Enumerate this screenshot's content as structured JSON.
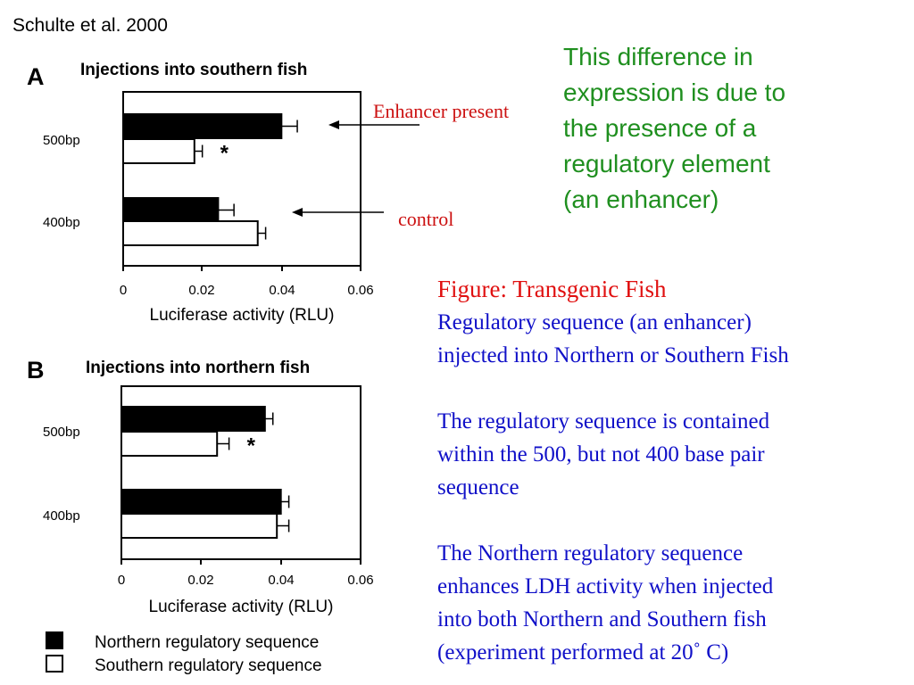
{
  "citation": "Schulte et al. 2000",
  "annotations": {
    "enhancer_label": "Enhancer present",
    "control_label": "control",
    "label_color": "#cc1111"
  },
  "green_note": [
    "This difference in",
    "expression is due to",
    "the presence of a",
    "regulatory element",
    "(an enhancer)"
  ],
  "figure_text": {
    "title": "Figure: Transgenic Fish",
    "para1": [
      "Regulatory sequence (an enhancer)",
      "injected into Northern or Southern Fish"
    ],
    "para2": [
      "The regulatory sequence is contained",
      "within the 500, but not 400 base pair",
      "sequence"
    ],
    "para3": [
      "The Northern regulatory sequence",
      "enhances LDH activity when injected",
      "into both Northern and Southern fish",
      "(experiment performed at 20˚ C)"
    ]
  },
  "legend": {
    "northern": "Northern regulatory sequence",
    "southern": "Southern regulatory sequence"
  },
  "chart_data": [
    {
      "type": "bar",
      "orientation": "horizontal",
      "panel": "A",
      "title": "Injections into southern fish",
      "xlabel": "Luciferase activity (RLU)",
      "xlim": [
        0,
        0.06
      ],
      "xticks": [
        "0",
        "0.02",
        "0.04",
        "0.06"
      ],
      "categories": [
        "500bp",
        "400bp"
      ],
      "series": [
        {
          "name": "Northern regulatory sequence",
          "color": "#000000",
          "values": [
            0.04,
            0.024
          ],
          "errors": [
            0.004,
            0.004
          ]
        },
        {
          "name": "Southern regulatory sequence",
          "color": "#ffffff",
          "values": [
            0.018,
            0.034
          ],
          "errors": [
            0.002,
            0.002
          ]
        }
      ],
      "significance": [
        "*",
        ""
      ]
    },
    {
      "type": "bar",
      "orientation": "horizontal",
      "panel": "B",
      "title": "Injections into northern fish",
      "xlabel": "Luciferase activity (RLU)",
      "xlim": [
        0,
        0.06
      ],
      "xticks": [
        "0",
        "0.02",
        "0.04",
        "0.06"
      ],
      "categories": [
        "500bp",
        "400bp"
      ],
      "series": [
        {
          "name": "Northern regulatory sequence",
          "color": "#000000",
          "values": [
            0.036,
            0.04
          ],
          "errors": [
            0.002,
            0.002
          ]
        },
        {
          "name": "Southern regulatory sequence",
          "color": "#ffffff",
          "values": [
            0.024,
            0.039
          ],
          "errors": [
            0.003,
            0.003
          ]
        }
      ],
      "significance": [
        "*",
        ""
      ]
    }
  ]
}
